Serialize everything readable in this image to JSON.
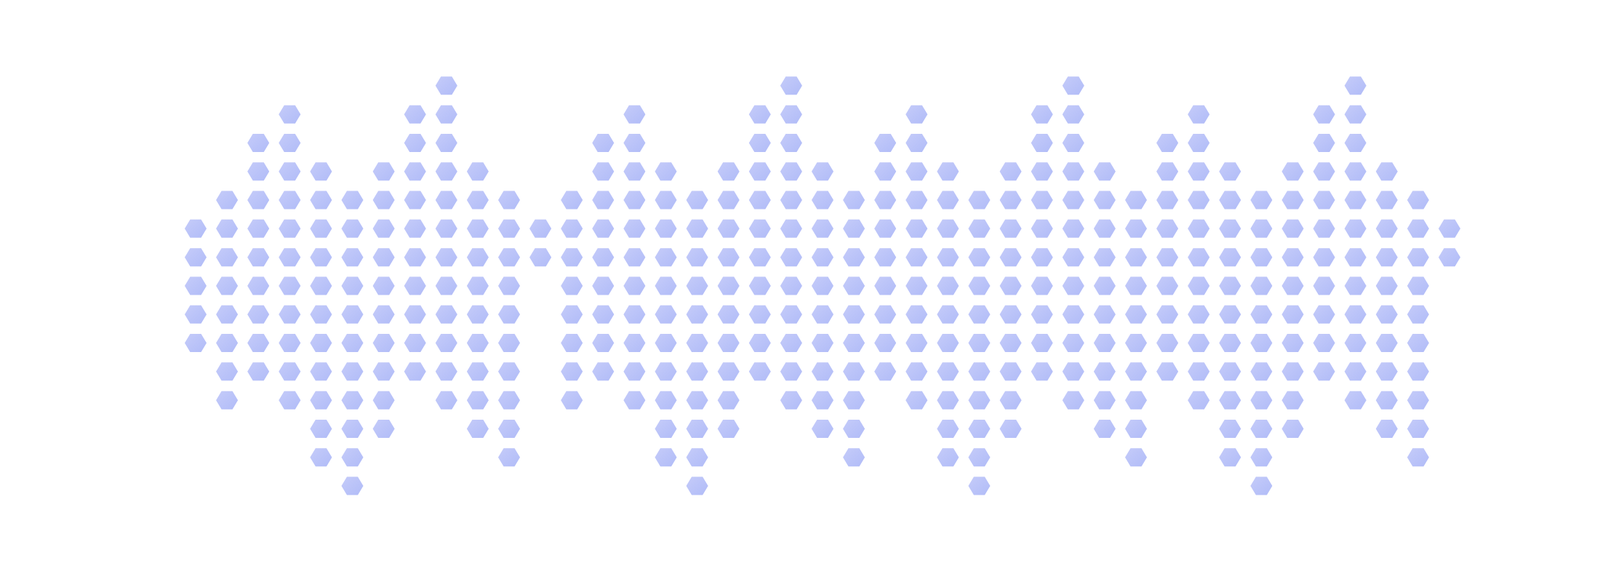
{
  "chart_data": {
    "type": "bar",
    "stacked": true,
    "tick_labels": false,
    "grid": false,
    "color": "#b8c0f8",
    "categories": [
      null,
      null,
      null,
      null,
      null,
      null,
      null,
      null,
      null,
      null,
      null,
      null,
      null,
      null,
      null,
      null,
      null,
      null,
      null,
      null,
      null,
      null,
      null,
      null,
      null,
      null,
      null,
      null,
      null,
      null,
      null,
      null,
      null,
      null,
      null,
      null,
      null,
      null,
      null,
      null,
      null
    ],
    "ylim": [
      -10,
      7
    ],
    "series": [
      {
        "values": [
          1,
          2,
          4,
          5,
          3,
          2,
          3,
          5,
          6,
          3,
          2,
          1,
          2,
          4,
          5,
          3,
          2,
          3,
          5,
          6,
          3,
          2,
          4,
          5,
          3,
          2,
          3,
          5,
          6,
          3,
          2,
          4,
          5,
          3,
          2,
          3,
          5,
          6,
          3,
          2,
          1
        ]
      },
      {
        "values": [
          -4,
          -6,
          -5,
          -6,
          -8,
          -9,
          -7,
          -5,
          -6,
          -7,
          -8,
          -1,
          -6,
          -5,
          -6,
          -8,
          -9,
          -7,
          -5,
          -6,
          -7,
          -8,
          -5,
          -6,
          -8,
          -9,
          -7,
          -5,
          -6,
          -7,
          -8,
          -5,
          -6,
          -8,
          -9,
          -7,
          -5,
          -6,
          -7,
          -8,
          -1
        ]
      }
    ]
  }
}
